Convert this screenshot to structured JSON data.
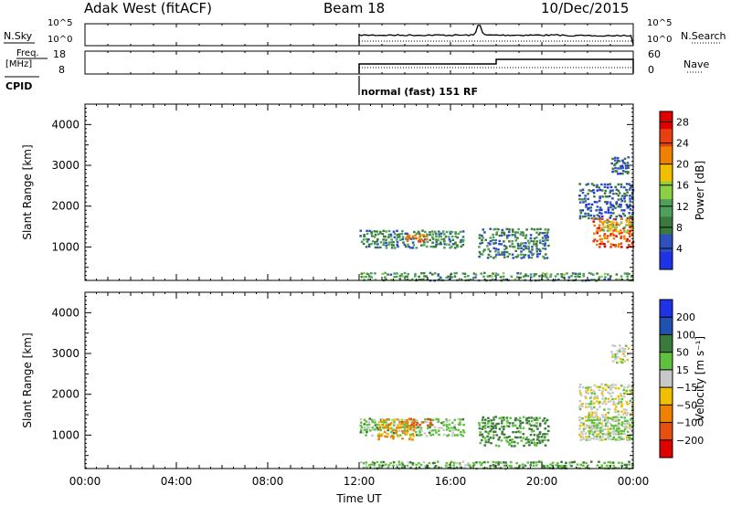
{
  "header": {
    "station": "Adak West (fitACF)",
    "beam": "Beam 18",
    "date": "10/Dec/2015"
  },
  "panels": {
    "nsky_label": "N.Sky",
    "nsky_ticks": [
      "10^5",
      "10^0"
    ],
    "nsearch_label": "N.Search",
    "nsearch_ticks": [
      "10^5",
      "10^0"
    ],
    "freq_label_1": "Freq.",
    "freq_label_2": "[MHz]",
    "freq_ticks": [
      "18",
      "8"
    ],
    "nave_label": "Nave",
    "nave_ticks": [
      "60",
      "0"
    ],
    "cpid_label": "CPID",
    "cpid_text": "normal (fast) 151 RF"
  },
  "colors": {
    "power": [
      "#1f33e6",
      "#3050c0",
      "#3a7a3a",
      "#4ea05a",
      "#8ccf40",
      "#f0c000",
      "#f08000",
      "#e84010",
      "#e00000"
    ],
    "velocity": [
      "#1f33e6",
      "#2050b0",
      "#3a7a3a",
      "#60c040",
      "#c8c8c8",
      "#f0c000",
      "#f08000",
      "#e85010",
      "#e00000"
    ]
  },
  "chart_data": [
    {
      "type": "heatmap",
      "title": "Power",
      "ylabel": "Slant Range [km]",
      "xlabel": "",
      "x_ticks": [
        "00:00",
        "04:00",
        "08:00",
        "12:00",
        "16:00",
        "20:00",
        "00:00"
      ],
      "xlim": [
        0,
        24
      ],
      "ylim": [
        180,
        4500
      ],
      "y_ticks": [
        1000,
        2000,
        3000,
        4000
      ],
      "colorbar": {
        "label": "Power [dB]",
        "ticks": [
          4,
          8,
          12,
          16,
          20,
          24,
          28
        ],
        "range": [
          0,
          30
        ]
      },
      "regions": [
        {
          "t": [
            12.0,
            24.0
          ],
          "r": [
            200,
            420
          ],
          "level": 10
        },
        {
          "t": [
            12.0,
            16.6
          ],
          "r": [
            1000,
            1450
          ],
          "level": 9
        },
        {
          "t": [
            14.0,
            15.0
          ],
          "r": [
            1150,
            1350
          ],
          "level": 22
        },
        {
          "t": [
            17.2,
            20.3
          ],
          "r": [
            750,
            1500
          ],
          "level": 8
        },
        {
          "t": [
            21.6,
            24.0
          ],
          "r": [
            1700,
            2600
          ],
          "level": 6
        },
        {
          "t": [
            22.2,
            24.0
          ],
          "r": [
            1000,
            1750
          ],
          "level": 24
        },
        {
          "t": [
            22.6,
            24.0
          ],
          "r": [
            1400,
            1700
          ],
          "level": 16
        },
        {
          "t": [
            23.0,
            23.8
          ],
          "r": [
            2800,
            3250
          ],
          "level": 6
        }
      ]
    },
    {
      "type": "heatmap",
      "title": "Velocity",
      "ylabel": "Slant Range [km]",
      "xlabel": "Time UT",
      "x_ticks": [
        "00:00",
        "04:00",
        "08:00",
        "12:00",
        "16:00",
        "20:00",
        "00:00"
      ],
      "xlim": [
        0,
        24
      ],
      "ylim": [
        180,
        4500
      ],
      "y_ticks": [
        1000,
        2000,
        3000,
        4000
      ],
      "colorbar": {
        "label": "Velocity [m s⁻¹]",
        "ticks": [
          "200",
          "100",
          "50",
          "15",
          "−15",
          "−50",
          "−100",
          "−200"
        ],
        "range": [
          -250,
          250
        ]
      },
      "regions": [
        {
          "t": [
            12.0,
            24.0
          ],
          "r": [
            200,
            400
          ],
          "level": 40
        },
        {
          "t": [
            12.0,
            16.6
          ],
          "r": [
            1000,
            1450
          ],
          "level": 30
        },
        {
          "t": [
            12.8,
            14.4
          ],
          "r": [
            900,
            1450
          ],
          "level": -60
        },
        {
          "t": [
            14.2,
            15.2
          ],
          "r": [
            1250,
            1450
          ],
          "level": -150
        },
        {
          "t": [
            17.2,
            20.3
          ],
          "r": [
            750,
            1500
          ],
          "level": 60
        },
        {
          "t": [
            21.6,
            24.0
          ],
          "r": [
            900,
            2300
          ],
          "level": 0
        },
        {
          "t": [
            22.0,
            24.0
          ],
          "r": [
            900,
            1500
          ],
          "level": 20
        },
        {
          "t": [
            23.0,
            23.8
          ],
          "r": [
            2800,
            3250
          ],
          "level": 0
        }
      ]
    }
  ]
}
